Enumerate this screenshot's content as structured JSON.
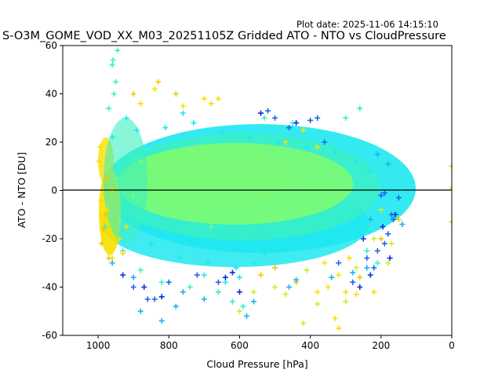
{
  "plot_date": "Plot date: 2025-11-06 14:15:10",
  "chart_data": {
    "type": "scatter",
    "title": "S-O3M_GOME_VOD_XX_M03_20251105Z Gridded ATO - NTO vs CloudPressure",
    "xlabel": "Cloud Pressure [hPa]",
    "ylabel": "ATO - NTO [DU]",
    "xlim": [
      1100,
      0
    ],
    "ylim": [
      -60,
      60
    ],
    "xticks": [
      1000,
      800,
      600,
      400,
      200,
      0
    ],
    "yticks": [
      -60,
      -40,
      -20,
      0,
      20,
      40,
      60
    ],
    "zero_line": 0,
    "marker": "plus",
    "grid": false,
    "colors": {
      "deep_blue": "#0a2de0",
      "blue": "#1e64f0",
      "cyan_blue": "#17b4f0",
      "cyan": "#1ee8f0",
      "aqua": "#3cf0c0",
      "green": "#78fa78",
      "yellow_green": "#c8f028",
      "yellow": "#f8e000",
      "gold": "#f0c800"
    },
    "series": [
      {
        "name": "core",
        "color_key": "green",
        "points": [
          [
            950,
            5
          ],
          [
            900,
            -2
          ],
          [
            860,
            8
          ],
          [
            820,
            -6
          ],
          [
            780,
            3
          ],
          [
            740,
            -10
          ],
          [
            700,
            7
          ],
          [
            660,
            -4
          ],
          [
            620,
            10
          ],
          [
            580,
            -8
          ],
          [
            540,
            2
          ],
          [
            500,
            -5
          ],
          [
            460,
            6
          ],
          [
            420,
            -3
          ],
          [
            380,
            4
          ],
          [
            340,
            -1
          ],
          [
            300,
            2
          ],
          [
            940,
            -12
          ],
          [
            880,
            12
          ],
          [
            800,
            15
          ],
          [
            720,
            18
          ],
          [
            680,
            -15
          ],
          [
            640,
            16
          ],
          [
            600,
            -12
          ],
          [
            560,
            12
          ],
          [
            520,
            -10
          ],
          [
            480,
            10
          ],
          [
            440,
            -8
          ],
          [
            400,
            8
          ],
          [
            360,
            -6
          ]
        ]
      },
      {
        "name": "cyan_cloud",
        "color_key": "cyan",
        "points": [
          [
            960,
            22
          ],
          [
            930,
            -25
          ],
          [
            890,
            25
          ],
          [
            850,
            -22
          ],
          [
            810,
            26
          ],
          [
            770,
            -28
          ],
          [
            730,
            28
          ],
          [
            690,
            -30
          ],
          [
            650,
            24
          ],
          [
            610,
            -32
          ],
          [
            570,
            22
          ],
          [
            530,
            -26
          ],
          [
            490,
            20
          ],
          [
            450,
            -24
          ],
          [
            410,
            18
          ],
          [
            370,
            -22
          ],
          [
            330,
            16
          ],
          [
            290,
            -20
          ],
          [
            270,
            12
          ],
          [
            250,
            -15
          ],
          [
            230,
            8
          ],
          [
            920,
            30
          ],
          [
            760,
            32
          ],
          [
            700,
            -35
          ],
          [
            640,
            -38
          ],
          [
            600,
            -36
          ],
          [
            560,
            -30
          ]
        ]
      },
      {
        "name": "aqua_cloud",
        "color_key": "aqua",
        "points": [
          [
            970,
            34
          ],
          [
            955,
            40
          ],
          [
            950,
            45
          ],
          [
            960,
            52
          ],
          [
            958,
            54
          ],
          [
            945,
            58
          ],
          [
            980,
            -15
          ],
          [
            820,
            -38
          ],
          [
            880,
            -33
          ],
          [
            740,
            -40
          ],
          [
            660,
            -42
          ],
          [
            620,
            -46
          ],
          [
            590,
            -48
          ],
          [
            260,
            34
          ],
          [
            300,
            30
          ],
          [
            530,
            30
          ],
          [
            450,
            28
          ],
          [
            240,
            -25
          ],
          [
            210,
            -30
          ],
          [
            190,
            10
          ]
        ]
      },
      {
        "name": "yellow_band",
        "color_key": "yellow",
        "points": [
          [
            995,
            18
          ],
          [
            990,
            10
          ],
          [
            992,
            -4
          ],
          [
            988,
            -12
          ],
          [
            985,
            -20
          ],
          [
            970,
            -18
          ],
          [
            965,
            -24
          ],
          [
            960,
            -28
          ],
          [
            998,
            12
          ],
          [
            975,
            -8
          ],
          [
            960,
            0
          ],
          [
            950,
            -22
          ],
          [
            940,
            -20
          ],
          [
            930,
            -26
          ],
          [
            920,
            -15
          ],
          [
            880,
            36
          ],
          [
            840,
            42
          ],
          [
            760,
            35
          ],
          [
            700,
            38
          ],
          [
            680,
            36
          ],
          [
            660,
            38
          ],
          [
            320,
            -35
          ],
          [
            300,
            -42
          ],
          [
            350,
            -40
          ],
          [
            380,
            -42
          ],
          [
            270,
            -43
          ],
          [
            220,
            -42
          ],
          [
            330,
            -53
          ],
          [
            320,
            -57
          ],
          [
            210,
            -25
          ],
          [
            470,
            20
          ],
          [
            420,
            25
          ],
          [
            380,
            18
          ],
          [
            360,
            -30
          ],
          [
            290,
            -28
          ]
        ]
      },
      {
        "name": "gold_band",
        "color_key": "gold",
        "points": [
          [
            980,
            -10
          ],
          [
            975,
            5
          ],
          [
            985,
            -16
          ],
          [
            990,
            -22
          ],
          [
            970,
            -28
          ],
          [
            900,
            40
          ],
          [
            830,
            45
          ],
          [
            780,
            40
          ],
          [
            540,
            -35
          ],
          [
            500,
            -32
          ],
          [
            440,
            -38
          ],
          [
            260,
            -36
          ],
          [
            150,
            -12
          ],
          [
            0,
            -13
          ],
          [
            0,
            10
          ],
          [
            200,
            -20
          ]
        ]
      },
      {
        "name": "yellow_green_band",
        "color_key": "yellow_green",
        "points": [
          [
            500,
            -40
          ],
          [
            470,
            -43
          ],
          [
            420,
            -55
          ],
          [
            380,
            -47
          ],
          [
            300,
            -46
          ],
          [
            270,
            -32
          ],
          [
            220,
            -20
          ],
          [
            180,
            -30
          ],
          [
            170,
            -22
          ],
          [
            0,
            1
          ],
          [
            200,
            -8
          ],
          [
            410,
            -33
          ],
          [
            560,
            -42
          ],
          [
            600,
            -50
          ]
        ]
      },
      {
        "name": "blue_scatter",
        "color_key": "blue",
        "points": [
          [
            900,
            -40
          ],
          [
            860,
            -45
          ],
          [
            840,
            -45
          ],
          [
            800,
            -38
          ],
          [
            720,
            -35
          ],
          [
            660,
            -38
          ],
          [
            520,
            33
          ],
          [
            500,
            30
          ],
          [
            460,
            26
          ],
          [
            400,
            29
          ],
          [
            380,
            30
          ],
          [
            360,
            20
          ],
          [
            320,
            -30
          ],
          [
            280,
            -38
          ],
          [
            240,
            -28
          ],
          [
            210,
            -25
          ],
          [
            190,
            -22
          ],
          [
            180,
            -18
          ],
          [
            170,
            -10
          ],
          [
            165,
            -12
          ],
          [
            150,
            -3
          ],
          [
            190,
            -1
          ],
          [
            220,
            -32
          ],
          [
            200,
            -2
          ]
        ]
      },
      {
        "name": "deep_blue_scatter",
        "color_key": "deep_blue",
        "points": [
          [
            930,
            -35
          ],
          [
            870,
            -40
          ],
          [
            820,
            -44
          ],
          [
            640,
            -36
          ],
          [
            620,
            -34
          ],
          [
            600,
            -42
          ],
          [
            540,
            32
          ],
          [
            440,
            28
          ],
          [
            260,
            -40
          ],
          [
            230,
            -35
          ],
          [
            160,
            -10
          ],
          [
            195,
            -15
          ],
          [
            175,
            -28
          ],
          [
            250,
            -20
          ]
        ]
      },
      {
        "name": "cyan_blue_scatter",
        "color_key": "cyan_blue",
        "points": [
          [
            880,
            -50
          ],
          [
            820,
            -54
          ],
          [
            780,
            -48
          ],
          [
            760,
            -42
          ],
          [
            700,
            -45
          ],
          [
            580,
            -52
          ],
          [
            560,
            -46
          ],
          [
            460,
            -40
          ],
          [
            440,
            -37
          ],
          [
            340,
            -36
          ],
          [
            280,
            -34
          ],
          [
            240,
            -32
          ],
          [
            230,
            -12
          ],
          [
            210,
            15
          ],
          [
            180,
            11
          ],
          [
            140,
            -14
          ],
          [
            960,
            -30
          ],
          [
            900,
            -36
          ]
        ]
      }
    ]
  }
}
